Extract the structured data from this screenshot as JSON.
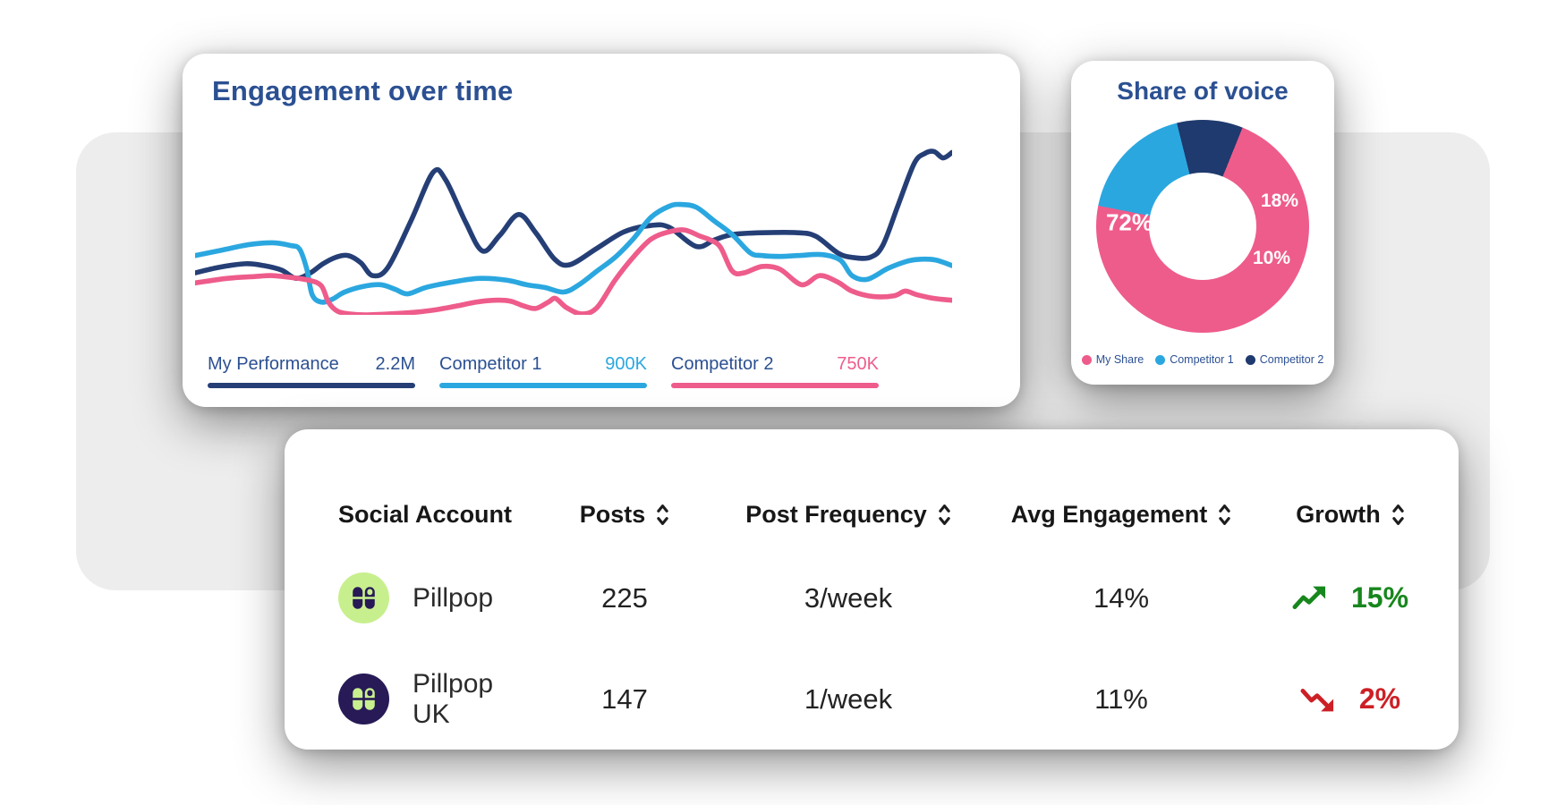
{
  "engagement_card": {
    "title": "Engagement over time",
    "legend": [
      {
        "label": "My Performance",
        "value": "2.2M",
        "bar_color": "#253f76",
        "value_color": "#2b5092"
      },
      {
        "label": "Competitor 1",
        "value": "900K",
        "bar_color": "#2ba7e0",
        "value_color": "#2ba7e0"
      },
      {
        "label": "Competitor 2",
        "value": "750K",
        "bar_color": "#ee5c8b",
        "value_color": "#ee5c8b"
      }
    ]
  },
  "share_card": {
    "title": "Share of voice",
    "legend": [
      {
        "label": "My Share",
        "color": "#ee5c8b"
      },
      {
        "label": "Competitor 1",
        "color": "#2ba7e0"
      },
      {
        "label": "Competitor 2",
        "color": "#1f3a6e"
      }
    ]
  },
  "table": {
    "headers": [
      {
        "label": "Social Account",
        "sortable": false
      },
      {
        "label": "Posts",
        "sortable": true
      },
      {
        "label": "Post Frequency",
        "sortable": true
      },
      {
        "label": "Avg Engagement",
        "sortable": true
      },
      {
        "label": "Growth",
        "sortable": true
      }
    ],
    "rows": [
      {
        "account": "Pillpop",
        "avatar_bg": "#c8ef8e",
        "pill_color": "#271a56",
        "posts": "225",
        "frequency": "3/week",
        "avg_engagement": "14%",
        "growth": "15%",
        "growth_direction": "up",
        "growth_color": "#17871d"
      },
      {
        "account": "Pillpop UK",
        "avatar_bg": "#271a56",
        "pill_color": "#c8ef8e",
        "posts": "147",
        "frequency": "1/week",
        "avg_engagement": "11%",
        "growth": "2%",
        "growth_direction": "down",
        "growth_color": "#cc2026"
      }
    ]
  },
  "chart_data": [
    {
      "type": "line",
      "title": "Engagement over time",
      "axes_visible": false,
      "note": "No numeric axes shown; points are [x,y] in 840x200 chart pixel space, y inverted (smaller y = higher engagement).",
      "series": [
        {
          "name": "My Performance",
          "total": "2.2M",
          "color": "#253f76",
          "points": [
            [
              0,
              154
            ],
            [
              26,
              148
            ],
            [
              56,
              144
            ],
            [
              76,
              146
            ],
            [
              96,
              151
            ],
            [
              112,
              160
            ],
            [
              128,
              154
            ],
            [
              142,
              144
            ],
            [
              156,
              137
            ],
            [
              170,
              135
            ],
            [
              184,
              143
            ],
            [
              197,
              157
            ],
            [
              214,
              148
            ],
            [
              240,
              96
            ],
            [
              264,
              44
            ],
            [
              278,
              52
            ],
            [
              300,
              98
            ],
            [
              319,
              130
            ],
            [
              338,
              113
            ],
            [
              359,
              90
            ],
            [
              378,
              110
            ],
            [
              399,
              139
            ],
            [
              416,
              145
            ],
            [
              446,
              127
            ],
            [
              476,
              109
            ],
            [
              506,
              102
            ],
            [
              526,
              104
            ],
            [
              556,
              125
            ],
            [
              576,
              118
            ],
            [
              596,
              112
            ],
            [
              629,
              110
            ],
            [
              669,
              110
            ],
            [
              689,
              114
            ],
            [
              713,
              132
            ],
            [
              729,
              137
            ],
            [
              749,
              137
            ],
            [
              763,
              124
            ],
            [
              780,
              80
            ],
            [
              798,
              34
            ],
            [
              810,
              23
            ],
            [
              820,
              21
            ],
            [
              830,
              28
            ],
            [
              840,
              22
            ]
          ]
        },
        {
          "name": "Competitor 1",
          "total": "900K",
          "color": "#2ba7e0",
          "points": [
            [
              0,
              135
            ],
            [
              30,
              129
            ],
            [
              60,
              123
            ],
            [
              86,
              121
            ],
            [
              106,
              124
            ],
            [
              116,
              128
            ],
            [
              124,
              150
            ],
            [
              130,
              178
            ],
            [
              140,
              186
            ],
            [
              152,
              183
            ],
            [
              166,
              175
            ],
            [
              186,
              169
            ],
            [
              206,
              167
            ],
            [
              222,
              172
            ],
            [
              236,
              177
            ],
            [
              256,
              170
            ],
            [
              286,
              164
            ],
            [
              316,
              160
            ],
            [
              346,
              162
            ],
            [
              368,
              167
            ],
            [
              388,
              170
            ],
            [
              409,
              175
            ],
            [
              426,
              167
            ],
            [
              446,
              152
            ],
            [
              466,
              137
            ],
            [
              486,
              117
            ],
            [
              506,
              93
            ],
            [
              526,
              81
            ],
            [
              539,
              79
            ],
            [
              556,
              82
            ],
            [
              576,
              97
            ],
            [
              596,
              112
            ],
            [
              616,
              132
            ],
            [
              629,
              135
            ],
            [
              649,
              136
            ],
            [
              669,
              135
            ],
            [
              696,
              134
            ],
            [
              716,
              140
            ],
            [
              729,
              157
            ],
            [
              746,
              161
            ],
            [
              769,
              149
            ],
            [
              791,
              141
            ],
            [
              806,
              139
            ],
            [
              822,
              140
            ],
            [
              840,
              146
            ]
          ]
        },
        {
          "name": "Competitor 2",
          "total": "750K",
          "color": "#ee5c8b",
          "points": [
            [
              0,
              165
            ],
            [
              36,
              160
            ],
            [
              66,
              158
            ],
            [
              86,
              157
            ],
            [
              106,
              159
            ],
            [
              126,
              162
            ],
            [
              140,
              168
            ],
            [
              148,
              186
            ],
            [
              158,
              196
            ],
            [
              172,
              199
            ],
            [
              190,
              200
            ],
            [
              216,
              199
            ],
            [
              246,
              197
            ],
            [
              270,
              194
            ],
            [
              292,
              190
            ],
            [
              312,
              186
            ],
            [
              332,
              184
            ],
            [
              350,
              185
            ],
            [
              364,
              190
            ],
            [
              378,
              193
            ],
            [
              392,
              186
            ],
            [
              400,
              182
            ],
            [
              412,
              192
            ],
            [
              429,
              199
            ],
            [
              446,
              192
            ],
            [
              466,
              162
            ],
            [
              486,
              137
            ],
            [
              506,
              117
            ],
            [
              526,
              109
            ],
            [
              543,
              107
            ],
            [
              561,
              114
            ],
            [
              572,
              118
            ],
            [
              583,
              126
            ],
            [
              596,
              152
            ],
            [
              609,
              154
            ],
            [
              629,
              147
            ],
            [
              649,
              150
            ],
            [
              673,
              167
            ],
            [
              693,
              157
            ],
            [
              713,
              164
            ],
            [
              729,
              174
            ],
            [
              753,
              180
            ],
            [
              776,
              179
            ],
            [
              788,
              174
            ],
            [
              801,
              178
            ],
            [
              820,
              182
            ],
            [
              840,
              184
            ]
          ]
        }
      ]
    },
    {
      "type": "pie",
      "subtype": "donut",
      "title": "Share of voice",
      "start_angle_deg_from_top": 22,
      "segments": [
        {
          "label": "My Share",
          "value_pct": 72,
          "display": "72%",
          "color": "#ee5c8b"
        },
        {
          "label": "Competitor 1",
          "value_pct": 18,
          "display": "18%",
          "color": "#2ba7e0"
        },
        {
          "label": "Competitor 2",
          "value_pct": 10,
          "display": "10%",
          "color": "#1f3a6e"
        }
      ]
    }
  ]
}
